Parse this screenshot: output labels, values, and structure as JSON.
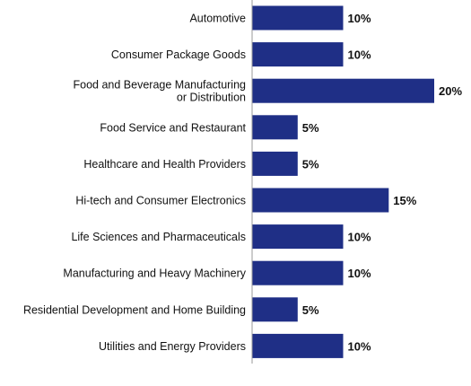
{
  "chart_data": {
    "type": "bar",
    "orientation": "horizontal",
    "title": "",
    "xlabel": "",
    "ylabel": "",
    "categories": [
      "Automotive",
      "Consumer Package Goods",
      "Food and Beverage Manufacturing or Distribution",
      "Food Service and Restaurant",
      "Healthcare and Health Providers",
      "Hi-tech and Consumer Electronics",
      "Life Sciences and Pharmaceuticals",
      "Manufacturing and Heavy Machinery",
      "Residential Development and Home Building",
      "Utilities and Energy Providers"
    ],
    "category_label_lines": [
      [
        "Automotive"
      ],
      [
        "Consumer Package Goods"
      ],
      [
        "Food and Beverage Manufacturing",
        "or Distribution"
      ],
      [
        "Food Service and Restaurant"
      ],
      [
        "Healthcare and Health Providers"
      ],
      [
        "Hi-tech and Consumer Electronics"
      ],
      [
        "Life Sciences and Pharmaceuticals"
      ],
      [
        "Manufacturing and Heavy Machinery"
      ],
      [
        "Residential Development and Home Building"
      ],
      [
        "Utilities and Energy Providers"
      ]
    ],
    "values": [
      10,
      10,
      20,
      5,
      5,
      15,
      10,
      10,
      5,
      10
    ],
    "value_labels": [
      "10%",
      "10%",
      "20%",
      "5%",
      "5%",
      "15%",
      "10%",
      "10%",
      "5%",
      "10%"
    ],
    "xlim": [
      0,
      20
    ],
    "bar_color": "#1f2f86",
    "axis_color": "#9a9a9a",
    "grid": false,
    "legend": "none"
  }
}
